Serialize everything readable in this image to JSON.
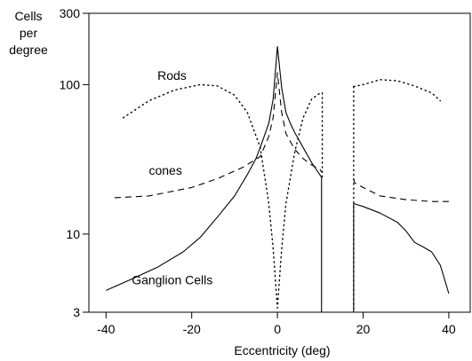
{
  "chart_data": {
    "type": "line",
    "title": "",
    "xlabel": "Eccentricity (deg)",
    "ylabel": "Cells per degree",
    "ylabel_lines": [
      "Cells",
      "per",
      "degree"
    ],
    "y_scale": "log",
    "xlim": [
      -44,
      45
    ],
    "ylim": [
      3,
      300
    ],
    "x_ticks": [
      -40,
      -20,
      0,
      20,
      40
    ],
    "x_tick_labels": [
      "-40",
      "-20",
      "0",
      "20",
      "40"
    ],
    "y_ticks": [
      3,
      10,
      100,
      300
    ],
    "y_tick_labels": [
      "3",
      "10",
      "100",
      "300"
    ],
    "grid": false,
    "legend": "none",
    "blind_spot": [
      10.3,
      17.8
    ],
    "series": [
      {
        "name": "Rods",
        "style": "dotted",
        "segments": [
          [
            [
              -36,
              60
            ],
            [
              -30,
              78
            ],
            [
              -24,
              92
            ],
            [
              -18,
              100
            ],
            [
              -14,
              98
            ],
            [
              -10,
              85
            ],
            [
              -7,
              65
            ],
            [
              -4,
              38
            ],
            [
              -2,
              16
            ],
            [
              -1,
              8
            ],
            [
              0,
              3.2
            ],
            [
              1,
              8
            ],
            [
              2,
              16
            ],
            [
              4,
              35
            ],
            [
              6,
              60
            ],
            [
              8,
              80
            ],
            [
              10,
              88
            ]
          ],
          [
            [
              17.8,
              97
            ],
            [
              20,
              100
            ],
            [
              24,
              108
            ],
            [
              28,
              106
            ],
            [
              32,
              98
            ],
            [
              36,
              88
            ],
            [
              38,
              78
            ]
          ]
        ]
      },
      {
        "name": "cones",
        "style": "dashed",
        "segments": [
          [
            [
              -38,
              17.5
            ],
            [
              -30,
              18
            ],
            [
              -20,
              20.5
            ],
            [
              -14,
              23.5
            ],
            [
              -8,
              28
            ],
            [
              -4,
              33
            ],
            [
              -2,
              45
            ],
            [
              -1,
              60
            ],
            [
              0,
              120
            ],
            [
              1,
              65
            ],
            [
              2,
              47
            ],
            [
              4,
              37
            ],
            [
              6,
              32
            ],
            [
              8,
              29
            ],
            [
              10,
              27
            ],
            [
              10.3,
              26
            ]
          ],
          [
            [
              17.8,
              23.5
            ],
            [
              18,
              22
            ],
            [
              20,
              20.5
            ],
            [
              24,
              18
            ],
            [
              30,
              17
            ],
            [
              36,
              16.5
            ],
            [
              40,
              16.5
            ]
          ]
        ]
      },
      {
        "name": "Ganglion Cells",
        "style": "solid",
        "segments": [
          [
            [
              -40,
              4.2
            ],
            [
              -34,
              5
            ],
            [
              -28,
              6
            ],
            [
              -22,
              7.6
            ],
            [
              -18,
              9.5
            ],
            [
              -14,
              13
            ],
            [
              -10,
              18
            ],
            [
              -7,
              25
            ],
            [
              -5,
              32
            ],
            [
              -4,
              38
            ],
            [
              -2,
              55
            ],
            [
              -1,
              80
            ],
            [
              0,
              180
            ],
            [
              1,
              95
            ],
            [
              2,
              65
            ],
            [
              3,
              55
            ],
            [
              4,
              48
            ],
            [
              6,
              38
            ],
            [
              8,
              30
            ],
            [
              10.3,
              24
            ]
          ],
          [
            [
              17.8,
              16
            ],
            [
              20,
              15.3
            ],
            [
              24,
              13.8
            ],
            [
              28,
              12
            ],
            [
              30,
              10.5
            ],
            [
              32,
              8.8
            ],
            [
              34,
              8.2
            ],
            [
              36,
              7.6
            ],
            [
              38,
              6.2
            ],
            [
              40,
              4
            ]
          ]
        ]
      }
    ],
    "labels": [
      {
        "text": "Rods",
        "x": -28,
        "y": 108
      },
      {
        "text": "cones",
        "x": -30,
        "y": 25
      },
      {
        "text": "Ganglion Cells",
        "x": -34,
        "y": 4.6
      }
    ]
  }
}
